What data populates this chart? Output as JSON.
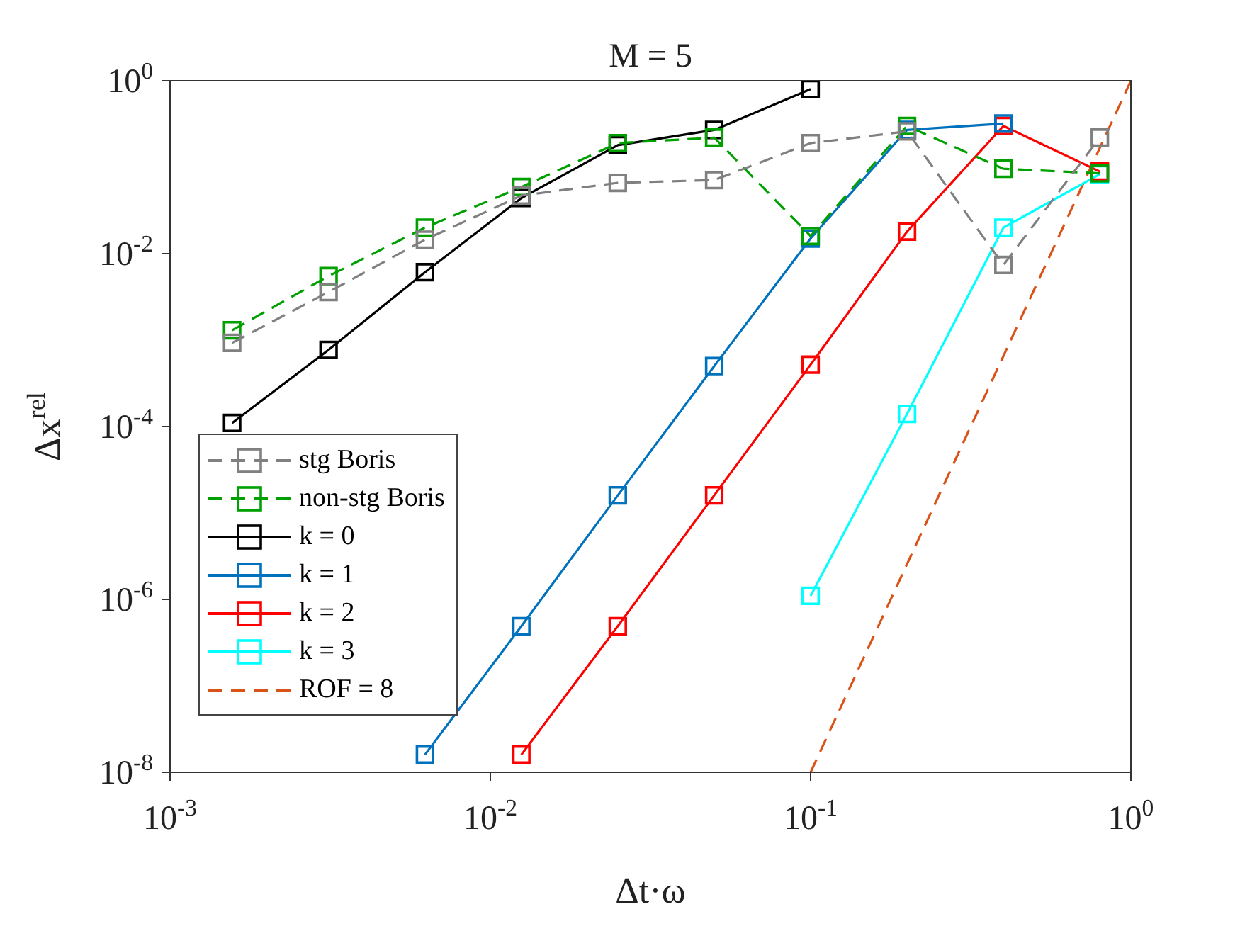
{
  "chart_data": {
    "type": "line",
    "title": "M = 5",
    "xlabel": "Δt·ω",
    "ylabel": "Δx$^{rel}$",
    "log": "xy",
    "legend": "bottom left",
    "marker": "square",
    "xlim": [
      0.001,
      1
    ],
    "xticks": [
      {
        "value": 0.001,
        "label": "10$^{-3}$"
      },
      {
        "value": 0.01,
        "label": "10$^{-2}$"
      },
      {
        "value": 0.1,
        "label": "10$^{-1}$"
      },
      {
        "value": 1,
        "label": "10$^{0}$"
      }
    ],
    "ylim": [
      1e-08,
      1
    ],
    "yticks": [
      {
        "value": 1e-08,
        "label": "10$^{-8}$"
      },
      {
        "value": 1e-06,
        "label": "10$^{-6}$"
      },
      {
        "value": 0.0001,
        "label": "10$^{-4}$"
      },
      {
        "value": 0.01,
        "label": "10$^{-2}$"
      },
      {
        "value": 1,
        "label": "10$^{0}$"
      }
    ],
    "series": [
      {
        "name": "stg Boris",
        "color": "#808080",
        "line_style": "dashed",
        "x": [
          0.0015625,
          0.003125,
          0.00625,
          0.0125,
          0.025,
          0.05,
          0.1,
          0.2,
          0.4,
          0.8
        ],
        "values": [
          0.00093,
          0.0036,
          0.0145,
          0.047,
          0.066,
          0.071,
          0.19,
          0.26,
          0.0074,
          0.22
        ]
      },
      {
        "name": "non-stg Boris",
        "color": "#00a000",
        "line_style": "dashed",
        "x": [
          0.0015625,
          0.003125,
          0.00625,
          0.0125,
          0.025,
          0.05,
          0.1,
          0.2,
          0.4,
          0.8
        ],
        "values": [
          0.0013,
          0.0055,
          0.02,
          0.059,
          0.19,
          0.22,
          0.016,
          0.3,
          0.096,
          0.085
        ]
      },
      {
        "name": "k = 0",
        "color": "#000000",
        "line_style": "solid",
        "x": [
          0.0015625,
          0.003125,
          0.00625,
          0.0125,
          0.025,
          0.05,
          0.1
        ],
        "values": [
          0.00011,
          0.00077,
          0.0061,
          0.044,
          0.18,
          0.27,
          0.8
        ]
      },
      {
        "name": "k = 1",
        "color": "#0072bd",
        "line_style": "solid",
        "x": [
          0.00625,
          0.0125,
          0.025,
          0.05,
          0.1,
          0.2,
          0.4
        ],
        "values": [
          1.6e-08,
          4.9e-07,
          1.6e-05,
          0.0005,
          0.015,
          0.27,
          0.32
        ]
      },
      {
        "name": "k = 2",
        "color": "#ff0000",
        "line_style": "solid",
        "x": [
          0.0125,
          0.025,
          0.05,
          0.1,
          0.2,
          0.4,
          0.8
        ],
        "values": [
          1.6e-08,
          4.9e-07,
          1.6e-05,
          0.00052,
          0.018,
          0.3,
          0.089
        ]
      },
      {
        "name": "k = 3",
        "color": "#00ffff",
        "line_style": "solid",
        "x": [
          0.1,
          0.2,
          0.4,
          0.8
        ],
        "values": [
          1.1e-06,
          0.00014,
          0.02,
          0.083
        ]
      },
      {
        "name": "ROF = 8",
        "color": "#d95319",
        "line_style": "dashed",
        "marker": "none",
        "x": [
          0.1,
          1
        ],
        "values": [
          1e-08,
          1
        ]
      }
    ]
  }
}
